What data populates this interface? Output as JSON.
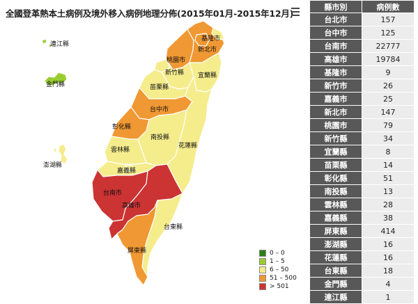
{
  "title": "全國登革熱本土病例及境外移入病例地理分佈(2015年01月-2015年12月)",
  "menu_icon": "hamburger-menu-icon",
  "colors": {
    "c0": "#2e7d16",
    "c1": "#9acd32",
    "c2": "#f5ec8c",
    "c3": "#f09833",
    "c4": "#cc3333"
  },
  "legend": [
    {
      "label": "0 – 0",
      "color": "#2e7d16"
    },
    {
      "label": "1 – 5",
      "color": "#9acd32"
    },
    {
      "label": "6 – 50",
      "color": "#f5ec8c"
    },
    {
      "label": "51 – 500",
      "color": "#f09833"
    },
    {
      "label": "> 501",
      "color": "#cc3333"
    }
  ],
  "table": {
    "headers": [
      "縣市別",
      "病例數"
    ],
    "rows": [
      {
        "name": "台北市",
        "value": "157"
      },
      {
        "name": "台中市",
        "value": "125"
      },
      {
        "name": "台南市",
        "value": "22777"
      },
      {
        "name": "高雄市",
        "value": "19784"
      },
      {
        "name": "基隆市",
        "value": "9"
      },
      {
        "name": "新竹市",
        "value": "26"
      },
      {
        "name": "嘉義市",
        "value": "25"
      },
      {
        "name": "新北市",
        "value": "147"
      },
      {
        "name": "桃園市",
        "value": "79"
      },
      {
        "name": "新竹縣",
        "value": "34"
      },
      {
        "name": "宜蘭縣",
        "value": "8"
      },
      {
        "name": "苗栗縣",
        "value": "14"
      },
      {
        "name": "彰化縣",
        "value": "51"
      },
      {
        "name": "南投縣",
        "value": "13"
      },
      {
        "name": "雲林縣",
        "value": "28"
      },
      {
        "name": "嘉義縣",
        "value": "38"
      },
      {
        "name": "屏東縣",
        "value": "414"
      },
      {
        "name": "澎湖縣",
        "value": "16"
      },
      {
        "name": "花蓮縣",
        "value": "16"
      },
      {
        "name": "台東縣",
        "value": "18"
      },
      {
        "name": "金門縣",
        "value": "4"
      },
      {
        "name": "連江縣",
        "value": "1"
      }
    ]
  },
  "map": {
    "regions": [
      {
        "id": "lienchiang",
        "label": "連江縣",
        "cls": "c1"
      },
      {
        "id": "kinmen",
        "label": "金門縣",
        "cls": "c1"
      },
      {
        "id": "penghu",
        "label": "澎湖縣",
        "cls": "c2"
      },
      {
        "id": "keelung",
        "label": "基隆市",
        "cls": "c2"
      },
      {
        "id": "taipei",
        "label": "台北市",
        "cls": "c3"
      },
      {
        "id": "newtaipei",
        "label": "新北市",
        "cls": "c3"
      },
      {
        "id": "taoyuan",
        "label": "桃園市",
        "cls": "c3"
      },
      {
        "id": "hsinchucity",
        "label": "新竹市",
        "cls": "c2"
      },
      {
        "id": "hsinchu",
        "label": "新竹縣",
        "cls": "c2"
      },
      {
        "id": "yilan",
        "label": "宜蘭縣",
        "cls": "c2"
      },
      {
        "id": "miaoli",
        "label": "苗栗縣",
        "cls": "c2"
      },
      {
        "id": "taichung",
        "label": "台中市",
        "cls": "c3"
      },
      {
        "id": "changhua",
        "label": "彰化縣",
        "cls": "c3"
      },
      {
        "id": "nantou",
        "label": "南投縣",
        "cls": "c2"
      },
      {
        "id": "hualien",
        "label": "花蓮縣",
        "cls": "c2"
      },
      {
        "id": "yunlin",
        "label": "雲林縣",
        "cls": "c2"
      },
      {
        "id": "chiayi",
        "label": "嘉義縣",
        "cls": "c2"
      },
      {
        "id": "chiayicity",
        "label": "嘉義市",
        "cls": "c2"
      },
      {
        "id": "tainan",
        "label": "台南市",
        "cls": "c4"
      },
      {
        "id": "kaohsiung",
        "label": "高雄市",
        "cls": "c4"
      },
      {
        "id": "taitung",
        "label": "台東縣",
        "cls": "c2"
      },
      {
        "id": "pingtung",
        "label": "屏東縣",
        "cls": "c3"
      }
    ]
  }
}
